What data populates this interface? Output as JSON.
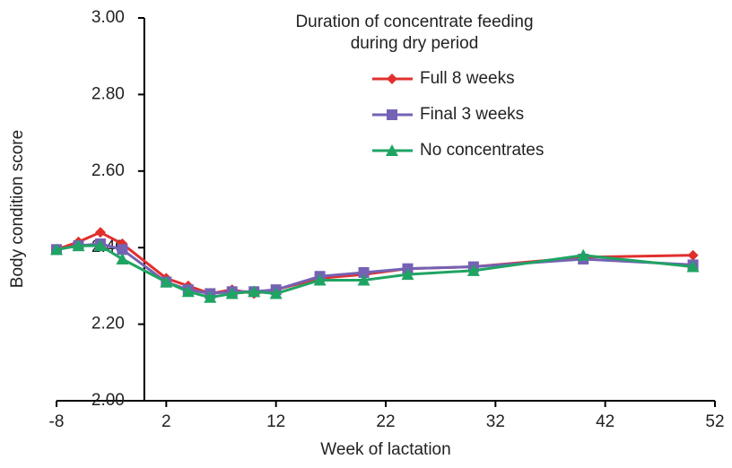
{
  "chart_data": {
    "type": "line",
    "xlabel": "Week of lactation",
    "ylabel": "Body condition score",
    "legend_title": [
      "Duration of concentrate feeding",
      "during dry period"
    ],
    "x": [
      -8,
      -6,
      -4,
      -2,
      2,
      4,
      6,
      8,
      10,
      12,
      16,
      20,
      24,
      30,
      40,
      50
    ],
    "series": [
      {
        "name": "Full 8 weeks",
        "color": "#e0302e",
        "marker": "diamond",
        "values": [
          2.395,
          2.415,
          2.44,
          2.41,
          2.32,
          2.3,
          2.28,
          2.29,
          2.28,
          2.29,
          2.32,
          2.33,
          2.345,
          2.35,
          2.375,
          2.38
        ]
      },
      {
        "name": "Final 3 weeks",
        "color": "#7462b4",
        "marker": "square",
        "values": [
          2.395,
          2.405,
          2.41,
          2.395,
          2.31,
          2.29,
          2.28,
          2.285,
          2.285,
          2.29,
          2.325,
          2.335,
          2.345,
          2.35,
          2.37,
          2.355
        ]
      },
      {
        "name": "No concentrates",
        "color": "#1fa463",
        "marker": "triangle",
        "values": [
          2.395,
          2.405,
          2.405,
          2.37,
          2.31,
          2.285,
          2.27,
          2.28,
          2.285,
          2.28,
          2.315,
          2.315,
          2.33,
          2.34,
          2.38,
          2.35
        ]
      }
    ],
    "xlim": [
      -8,
      52
    ],
    "xticks": [
      -8,
      2,
      12,
      22,
      32,
      42,
      52
    ],
    "ylim": [
      2,
      3
    ],
    "yticks": [
      {
        "value": 2,
        "label": "2.00"
      },
      {
        "value": 2.2,
        "label": "2.20"
      },
      {
        "value": 2.4,
        "label": "2.40"
      },
      {
        "value": 2.6,
        "label": "2.60"
      },
      {
        "value": 2.8,
        "label": "2.80"
      },
      {
        "value": 3,
        "label": "3.00"
      }
    ],
    "grid": false
  }
}
